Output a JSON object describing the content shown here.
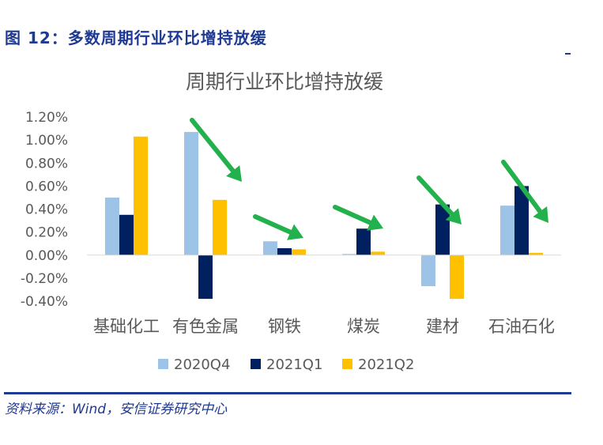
{
  "figure": {
    "title": "图 12：多数周期行业环比增持放缓",
    "source": "资料来源：Wind，安信证券研究中心"
  },
  "colors": {
    "accent": "#1f3a93",
    "series_2020Q4": "#9dc3e6",
    "series_2021Q1": "#002060",
    "series_2021Q2": "#ffc000",
    "arrow": "#22b14c"
  },
  "chart_data": {
    "type": "bar",
    "title": "周期行业环比增持放缓",
    "categories": [
      "基础化工",
      "有色金属",
      "钢铁",
      "煤炭",
      "建材",
      "石油石化"
    ],
    "series": [
      {
        "name": "2020Q4",
        "values": [
          0.5,
          1.07,
          0.12,
          0.01,
          -0.27,
          0.43
        ]
      },
      {
        "name": "2021Q1",
        "values": [
          0.35,
          -0.38,
          0.06,
          0.23,
          0.44,
          0.6
        ]
      },
      {
        "name": "2021Q2",
        "values": [
          1.03,
          0.48,
          0.05,
          0.03,
          -0.38,
          0.02
        ]
      }
    ],
    "ylim": [
      -0.4,
      1.2
    ],
    "yticks": [
      "1.20%",
      "1.00%",
      "0.80%",
      "0.60%",
      "0.40%",
      "0.20%",
      "0.00%",
      "-0.20%",
      "-0.40%"
    ],
    "ytick_values": [
      1.2,
      1.0,
      0.8,
      0.6,
      0.4,
      0.2,
      0.0,
      -0.2,
      -0.4
    ],
    "xlabel": "",
    "ylabel": "",
    "legend_position": "bottom",
    "annotations": "green downward arrows indicating slowdown per industry",
    "grid": false
  }
}
